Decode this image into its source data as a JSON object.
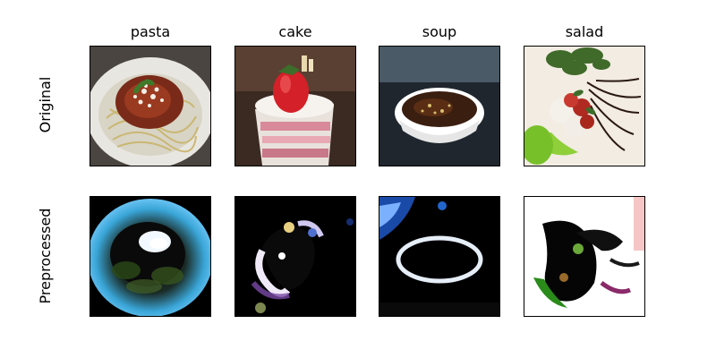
{
  "columns": [
    {
      "label": "pasta"
    },
    {
      "label": "cake"
    },
    {
      "label": "soup"
    },
    {
      "label": "salad"
    }
  ],
  "rows": [
    {
      "label": "Original"
    },
    {
      "label": "Preprocessed"
    }
  ]
}
